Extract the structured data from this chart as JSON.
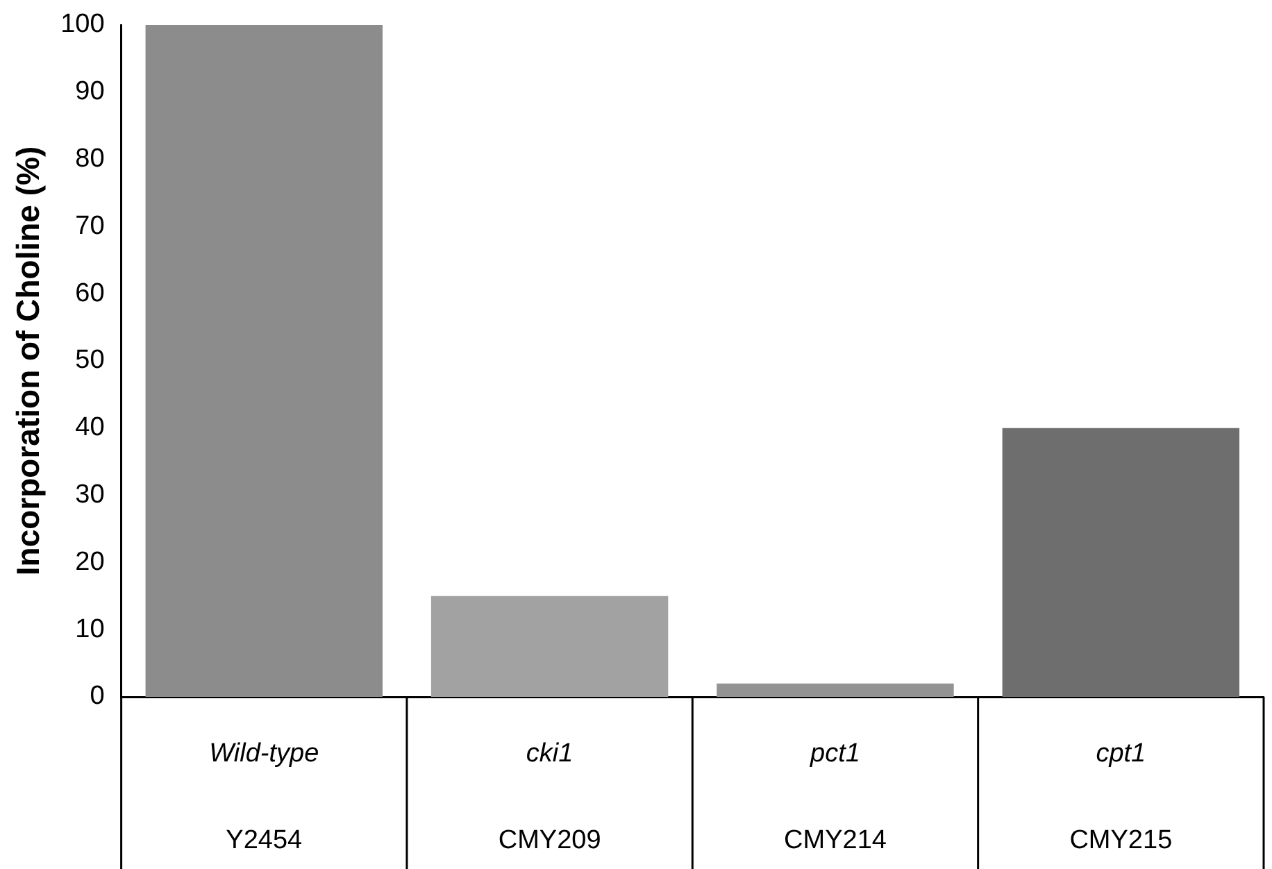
{
  "chart_data": {
    "type": "bar",
    "ylabel": "Incorporation of Choline (%)",
    "categories": [
      "Wild-type\nY2454",
      "cki1\nCMY209",
      "pct1\nCMY214",
      "cpt1\nCMY215"
    ],
    "values": [
      100,
      15,
      2,
      40
    ],
    "colors": [
      "#8c8c8c",
      "#a2a2a2",
      "#939393",
      "#6e6e6e"
    ],
    "ylim": [
      0,
      100
    ],
    "yticks": [
      0,
      10,
      20,
      30,
      40,
      50,
      60,
      70,
      80,
      90,
      100
    ],
    "grid": false,
    "legend": false
  }
}
